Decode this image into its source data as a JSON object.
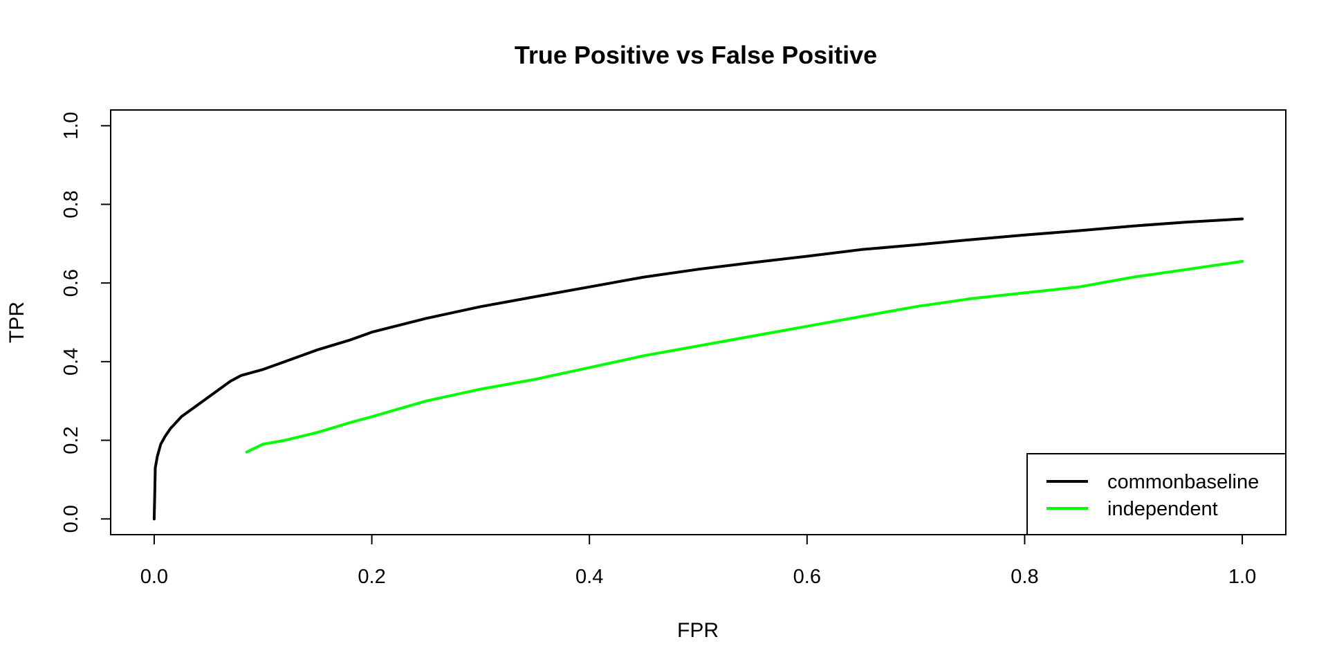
{
  "chart_data": {
    "type": "line",
    "title": "True Positive vs False Positive",
    "xlabel": "FPR",
    "ylabel": "TPR",
    "xlim": [
      -0.04,
      1.04
    ],
    "ylim": [
      -0.04,
      1.04
    ],
    "x_ticks": [
      "0.0",
      "0.2",
      "0.4",
      "0.6",
      "0.8",
      "1.0"
    ],
    "y_ticks": [
      "0.0",
      "0.2",
      "0.4",
      "0.6",
      "0.8",
      "1.0"
    ],
    "grid": false,
    "legend_position": "bottom-right",
    "series": [
      {
        "name": "commonbaseline",
        "color": "#000000",
        "points": [
          [
            0.0,
            0.0
          ],
          [
            0.0005,
            0.06
          ],
          [
            0.001,
            0.13
          ],
          [
            0.003,
            0.16
          ],
          [
            0.006,
            0.19
          ],
          [
            0.01,
            0.21
          ],
          [
            0.015,
            0.23
          ],
          [
            0.02,
            0.245
          ],
          [
            0.025,
            0.26
          ],
          [
            0.03,
            0.27
          ],
          [
            0.04,
            0.29
          ],
          [
            0.05,
            0.31
          ],
          [
            0.06,
            0.33
          ],
          [
            0.07,
            0.35
          ],
          [
            0.08,
            0.365
          ],
          [
            0.1,
            0.38
          ],
          [
            0.12,
            0.4
          ],
          [
            0.15,
            0.43
          ],
          [
            0.18,
            0.455
          ],
          [
            0.2,
            0.475
          ],
          [
            0.25,
            0.51
          ],
          [
            0.3,
            0.54
          ],
          [
            0.35,
            0.565
          ],
          [
            0.4,
            0.59
          ],
          [
            0.45,
            0.615
          ],
          [
            0.5,
            0.635
          ],
          [
            0.55,
            0.652
          ],
          [
            0.6,
            0.668
          ],
          [
            0.65,
            0.685
          ],
          [
            0.7,
            0.697
          ],
          [
            0.75,
            0.71
          ],
          [
            0.8,
            0.722
          ],
          [
            0.85,
            0.733
          ],
          [
            0.9,
            0.745
          ],
          [
            0.95,
            0.755
          ],
          [
            1.0,
            0.763
          ]
        ]
      },
      {
        "name": "independent",
        "color": "#00ff00",
        "points": [
          [
            0.085,
            0.17
          ],
          [
            0.1,
            0.19
          ],
          [
            0.12,
            0.2
          ],
          [
            0.15,
            0.22
          ],
          [
            0.18,
            0.245
          ],
          [
            0.2,
            0.26
          ],
          [
            0.25,
            0.3
          ],
          [
            0.3,
            0.33
          ],
          [
            0.35,
            0.355
          ],
          [
            0.4,
            0.385
          ],
          [
            0.45,
            0.415
          ],
          [
            0.5,
            0.44
          ],
          [
            0.55,
            0.465
          ],
          [
            0.6,
            0.49
          ],
          [
            0.65,
            0.515
          ],
          [
            0.7,
            0.54
          ],
          [
            0.75,
            0.56
          ],
          [
            0.8,
            0.575
          ],
          [
            0.85,
            0.59
          ],
          [
            0.9,
            0.615
          ],
          [
            0.95,
            0.635
          ],
          [
            1.0,
            0.655
          ]
        ]
      }
    ]
  }
}
